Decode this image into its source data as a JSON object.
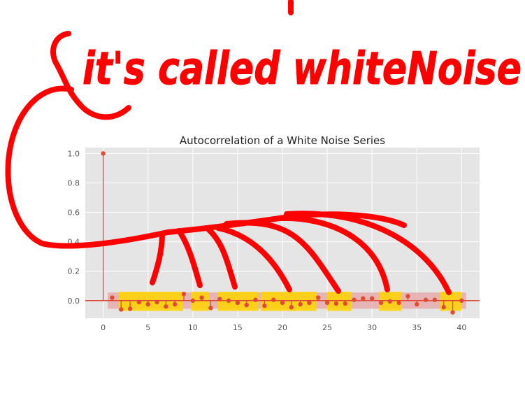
{
  "annotation": {
    "handwritten_text": "it's called whiteNoise"
  },
  "colors": {
    "plot_background": "#e5e5e5",
    "grid": "#ffffff",
    "stem": "#e24a33",
    "marker": "#e24a33",
    "confidence_band": "#e6a3a3",
    "ink": "#ff0000",
    "highlighter": "#ffd400"
  },
  "chart_data": {
    "type": "scatter",
    "title": "Autocorrelation of a White Noise Series",
    "xlabel": "",
    "ylabel": "",
    "xlim": [
      -2,
      42
    ],
    "ylim": [
      -0.12,
      1.04
    ],
    "x_ticks": [
      0,
      5,
      10,
      15,
      20,
      25,
      30,
      35,
      40
    ],
    "y_ticks": [
      0.0,
      0.2,
      0.4,
      0.6,
      0.8,
      1.0
    ],
    "x_tick_labels": [
      "0",
      "5",
      "10",
      "15",
      "20",
      "25",
      "30",
      "35",
      "40"
    ],
    "y_tick_labels": [
      "0.0",
      "0.2",
      "0.4",
      "0.6",
      "0.8",
      "1.0"
    ],
    "grid": true,
    "confidence_interval": [
      -0.055,
      0.055
    ],
    "lags": [
      0,
      1,
      2,
      3,
      4,
      5,
      6,
      7,
      8,
      9,
      10,
      11,
      12,
      13,
      14,
      15,
      16,
      17,
      18,
      19,
      20,
      21,
      22,
      23,
      24,
      25,
      26,
      27,
      28,
      29,
      30,
      31,
      32,
      33,
      34,
      35,
      36,
      37,
      38,
      39,
      40
    ],
    "values": [
      1.0,
      0.02,
      -0.06,
      -0.055,
      -0.01,
      -0.025,
      -0.01,
      -0.04,
      -0.025,
      0.045,
      0.0,
      0.02,
      -0.05,
      0.01,
      0.0,
      -0.015,
      -0.03,
      0.005,
      -0.035,
      0.005,
      -0.015,
      -0.045,
      -0.025,
      -0.015,
      0.02,
      -0.015,
      -0.02,
      -0.02,
      0.005,
      0.015,
      0.015,
      -0.015,
      -0.005,
      -0.015,
      0.03,
      -0.025,
      0.005,
      0.005,
      -0.045,
      -0.08,
      0.0
    ]
  }
}
